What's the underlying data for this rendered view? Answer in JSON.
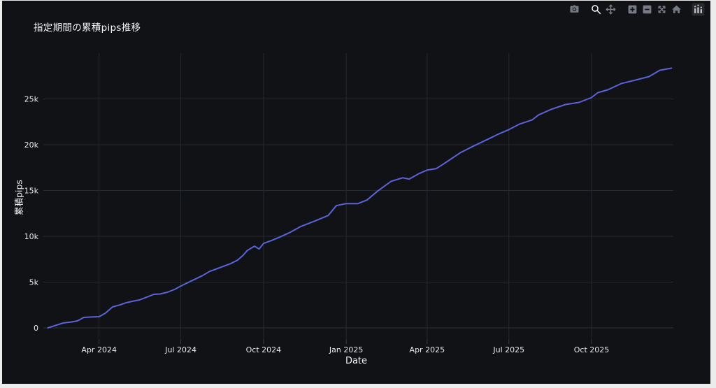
{
  "header": {
    "title": "指定期間の累積pips推移"
  },
  "modebar": {
    "buttons": [
      {
        "name": "camera-icon",
        "group": 0,
        "active": false
      },
      {
        "name": "zoom-icon",
        "group": 1,
        "active": true
      },
      {
        "name": "pan-icon",
        "group": 1,
        "active": false
      },
      {
        "name": "zoom-in-icon",
        "group": 2,
        "active": false
      },
      {
        "name": "zoom-out-icon",
        "group": 2,
        "active": false
      },
      {
        "name": "autoscale-icon",
        "group": 2,
        "active": false
      },
      {
        "name": "home-icon",
        "group": 2,
        "active": false
      },
      {
        "name": "plotly-logo-icon",
        "group": 3,
        "active": false
      }
    ]
  },
  "chart_data": {
    "type": "line",
    "title": "指定期間の累積pips推移",
    "xlabel": "Date",
    "ylabel": "累積pips",
    "grid": true,
    "legend_position": "none",
    "colors": {
      "paper_bg": "#111216",
      "plot_bg": "#111216",
      "grid": "#242a31",
      "zeroline": "#2c333b",
      "tick_text": "#e6e9f0",
      "line": "#5e61d8",
      "tick_mark": "#3a404a"
    },
    "x_range": [
      "2024-01-30",
      "2025-12-31"
    ],
    "y_range": [
      -1300,
      30000
    ],
    "x_ticks": [
      {
        "label": "Apr 2024",
        "date": "2024-04-01"
      },
      {
        "label": "Jul 2024",
        "date": "2024-07-01"
      },
      {
        "label": "Oct 2024",
        "date": "2024-10-01"
      },
      {
        "label": "Jan 2025",
        "date": "2025-01-01"
      },
      {
        "label": "Apr 2025",
        "date": "2025-04-01"
      },
      {
        "label": "Jul 2025",
        "date": "2025-07-01"
      },
      {
        "label": "Oct 2025",
        "date": "2025-10-01"
      }
    ],
    "y_ticks": [
      {
        "label": "0",
        "value": 0
      },
      {
        "label": "5k",
        "value": 5000
      },
      {
        "label": "10k",
        "value": 10000
      },
      {
        "label": "15k",
        "value": 15000
      },
      {
        "label": "20k",
        "value": 20000
      },
      {
        "label": "25k",
        "value": 25000
      }
    ],
    "series": [
      {
        "name": "累積pips",
        "points": [
          [
            "2024-02-04",
            0
          ],
          [
            "2024-02-12",
            250
          ],
          [
            "2024-02-21",
            530
          ],
          [
            "2024-03-01",
            640
          ],
          [
            "2024-03-08",
            760
          ],
          [
            "2024-03-15",
            1140
          ],
          [
            "2024-03-24",
            1190
          ],
          [
            "2024-04-01",
            1220
          ],
          [
            "2024-04-08",
            1600
          ],
          [
            "2024-04-16",
            2290
          ],
          [
            "2024-04-24",
            2500
          ],
          [
            "2024-05-01",
            2740
          ],
          [
            "2024-05-08",
            2900
          ],
          [
            "2024-05-16",
            3050
          ],
          [
            "2024-05-24",
            3350
          ],
          [
            "2024-06-01",
            3660
          ],
          [
            "2024-06-08",
            3700
          ],
          [
            "2024-06-16",
            3890
          ],
          [
            "2024-06-24",
            4200
          ],
          [
            "2024-07-01",
            4570
          ],
          [
            "2024-07-09",
            4950
          ],
          [
            "2024-07-17",
            5330
          ],
          [
            "2024-07-25",
            5700
          ],
          [
            "2024-08-02",
            6170
          ],
          [
            "2024-08-10",
            6450
          ],
          [
            "2024-08-17",
            6710
          ],
          [
            "2024-08-25",
            7000
          ],
          [
            "2024-09-02",
            7390
          ],
          [
            "2024-09-08",
            7900
          ],
          [
            "2024-09-13",
            8460
          ],
          [
            "2024-09-21",
            8920
          ],
          [
            "2024-09-26",
            8610
          ],
          [
            "2024-10-01",
            9220
          ],
          [
            "2024-10-10",
            9550
          ],
          [
            "2024-10-19",
            9910
          ],
          [
            "2024-10-30",
            10400
          ],
          [
            "2024-11-11",
            11050
          ],
          [
            "2024-11-27",
            11660
          ],
          [
            "2024-12-12",
            12270
          ],
          [
            "2024-12-21",
            13340
          ],
          [
            "2025-01-01",
            13570
          ],
          [
            "2025-01-14",
            13570
          ],
          [
            "2025-01-24",
            13950
          ],
          [
            "2025-02-05",
            14940
          ],
          [
            "2025-02-20",
            16010
          ],
          [
            "2025-03-05",
            16390
          ],
          [
            "2025-03-12",
            16240
          ],
          [
            "2025-03-23",
            16850
          ],
          [
            "2025-04-01",
            17230
          ],
          [
            "2025-04-11",
            17380
          ],
          [
            "2025-04-23",
            18140
          ],
          [
            "2025-05-08",
            19130
          ],
          [
            "2025-05-22",
            19820
          ],
          [
            "2025-06-09",
            20660
          ],
          [
            "2025-06-20",
            21190
          ],
          [
            "2025-07-01",
            21650
          ],
          [
            "2025-07-13",
            22260
          ],
          [
            "2025-07-27",
            22720
          ],
          [
            "2025-08-03",
            23250
          ],
          [
            "2025-08-17",
            23860
          ],
          [
            "2025-09-02",
            24390
          ],
          [
            "2025-09-17",
            24620
          ],
          [
            "2025-10-01",
            25150
          ],
          [
            "2025-10-08",
            25690
          ],
          [
            "2025-10-19",
            25990
          ],
          [
            "2025-11-03",
            26680
          ],
          [
            "2025-11-19",
            27060
          ],
          [
            "2025-12-04",
            27440
          ],
          [
            "2025-12-16",
            28130
          ],
          [
            "2025-12-29",
            28360
          ]
        ]
      }
    ]
  }
}
